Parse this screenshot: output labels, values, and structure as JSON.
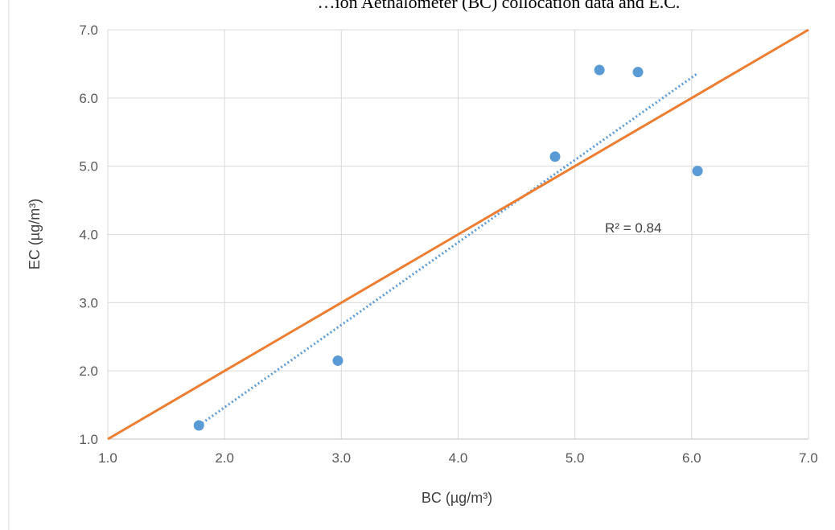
{
  "chart_data": {
    "type": "scatter",
    "title": "…ion Aethalometer (BC) collocation data and E.C.",
    "xlabel": "BC (µg/m³)",
    "ylabel": "EC (µg/m³)",
    "xlim": [
      1.0,
      7.0
    ],
    "ylim": [
      1.0,
      7.0
    ],
    "xticks": [
      "1.0",
      "2.0",
      "3.0",
      "4.0",
      "5.0",
      "6.0",
      "7.0"
    ],
    "yticks": [
      "1.0",
      "2.0",
      "3.0",
      "4.0",
      "5.0",
      "6.0",
      "7.0"
    ],
    "grid": true,
    "legend": "none",
    "series": [
      {
        "kind": "points",
        "color": "#5b9bd5",
        "x": [
          1.78,
          2.97,
          4.83,
          5.21,
          5.54,
          6.05
        ],
        "y": [
          1.2,
          2.15,
          5.14,
          6.41,
          6.38,
          4.93
        ]
      },
      {
        "kind": "trendline",
        "style": "dotted",
        "color": "#5b9bd5",
        "x": [
          1.78,
          6.05
        ],
        "y": [
          1.2,
          6.36
        ]
      },
      {
        "kind": "line",
        "style": "solid",
        "color": "#ed7d31",
        "x": [
          1.0,
          7.0
        ],
        "y": [
          1.0,
          7.0
        ]
      }
    ],
    "annotations": [
      {
        "text": "R² = 0.84",
        "x": 5.5,
        "y": 4.1
      }
    ]
  }
}
